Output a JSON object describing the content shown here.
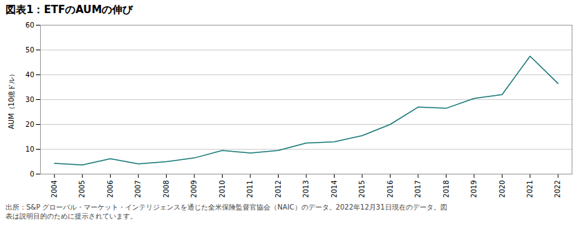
{
  "chart_data": {
    "type": "line",
    "title": "図表1：ETFのAUMの伸び",
    "ylabel": "AUM（10億ドル）",
    "x": [
      2004,
      2005,
      2006,
      2007,
      2008,
      2009,
      2010,
      2011,
      2012,
      2013,
      2014,
      2015,
      2016,
      2017,
      2018,
      2019,
      2020,
      2021,
      2022
    ],
    "values": [
      4.3,
      3.7,
      6.2,
      4.1,
      5.0,
      6.5,
      9.5,
      8.5,
      9.5,
      12.5,
      13.0,
      15.5,
      20.0,
      27.0,
      26.5,
      30.5,
      32.0,
      47.5,
      36.5
    ],
    "color": "#1a7a7a",
    "xlim": [
      2003.5,
      2022.5
    ],
    "xticks": [
      2004,
      2005,
      2006,
      2007,
      2008,
      2009,
      2010,
      2011,
      2012,
      2013,
      2014,
      2015,
      2016,
      2017,
      2018,
      2019,
      2020,
      2021,
      2022
    ],
    "ylim": [
      0,
      60
    ],
    "yticks": [
      0,
      10,
      20,
      30,
      40,
      50,
      60
    ],
    "grid": true,
    "footnote": [
      "出所：S&P グローバル・マーケット・インテリジェンスを通じた全米保険監督官協会（NAIC）のデータ。2022年12月31日現在のデータ。図",
      "表は説明目的のために提示されています。"
    ]
  }
}
